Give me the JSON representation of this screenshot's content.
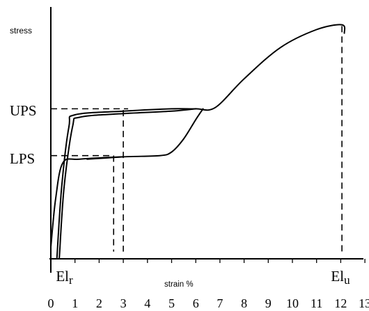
{
  "chart_data": {
    "type": "line",
    "ylabel": "stress",
    "xlabel": "strain %",
    "x_ticks": [
      "0",
      "1",
      "2",
      "3",
      "4",
      "5",
      "6",
      "7",
      "8",
      "9",
      "10",
      "11",
      "12",
      "13"
    ],
    "xlim": [
      0,
      13
    ],
    "y_levels": [
      {
        "label": "UPS",
        "stress_fraction": 0.62
      },
      {
        "label": "LPS",
        "stress_fraction": 0.42
      }
    ],
    "markers": [
      {
        "label_main": "El",
        "label_sub": "r",
        "strain": 0.5
      },
      {
        "label_main": "El",
        "label_sub": "u",
        "strain": 12
      }
    ],
    "series": [
      {
        "key": "upper_loading",
        "points": [
          [
            0.25,
            0
          ],
          [
            0.45,
            0.3
          ],
          [
            0.75,
            0.55
          ],
          [
            1.0,
            0.6
          ],
          [
            3.0,
            0.615
          ],
          [
            5.0,
            0.625
          ],
          [
            6.0,
            0.625
          ],
          [
            6.8,
            0.63
          ],
          [
            8.0,
            0.75
          ],
          [
            9.5,
            0.88
          ],
          [
            11.0,
            0.955
          ],
          [
            12.05,
            0.975
          ],
          [
            12.15,
            0.94
          ]
        ]
      },
      {
        "key": "upper_unloading",
        "points": [
          [
            6.0,
            0.625
          ],
          [
            5.0,
            0.615
          ],
          [
            3.0,
            0.605
          ],
          [
            1.2,
            0.59
          ],
          [
            0.9,
            0.55
          ],
          [
            0.55,
            0.3
          ],
          [
            0.35,
            0
          ]
        ]
      },
      {
        "key": "lower_loading",
        "points": [
          [
            0.0,
            0.05
          ],
          [
            0.2,
            0.25
          ],
          [
            0.5,
            0.4
          ],
          [
            1.2,
            0.415
          ],
          [
            3.0,
            0.425
          ],
          [
            4.5,
            0.43
          ],
          [
            5.0,
            0.445
          ],
          [
            5.5,
            0.5
          ],
          [
            6.0,
            0.58
          ],
          [
            6.3,
            0.625
          ]
        ]
      },
      {
        "key": "lower_inner",
        "points": [
          [
            1.5,
            0.415
          ],
          [
            3.0,
            0.425
          ]
        ]
      }
    ],
    "guides": [
      {
        "from": [
          0,
          0.625
        ],
        "to": [
          3.2,
          0.625
        ]
      },
      {
        "from": [
          3.0,
          0.62
        ],
        "to": [
          3.0,
          0.03
        ]
      },
      {
        "from": [
          0,
          0.43
        ],
        "to": [
          2.6,
          0.43
        ]
      },
      {
        "from": [
          2.6,
          0.43
        ],
        "to": [
          2.6,
          0.03
        ]
      },
      {
        "from": [
          12.05,
          0.97
        ],
        "to": [
          12.05,
          0.02
        ]
      }
    ]
  }
}
